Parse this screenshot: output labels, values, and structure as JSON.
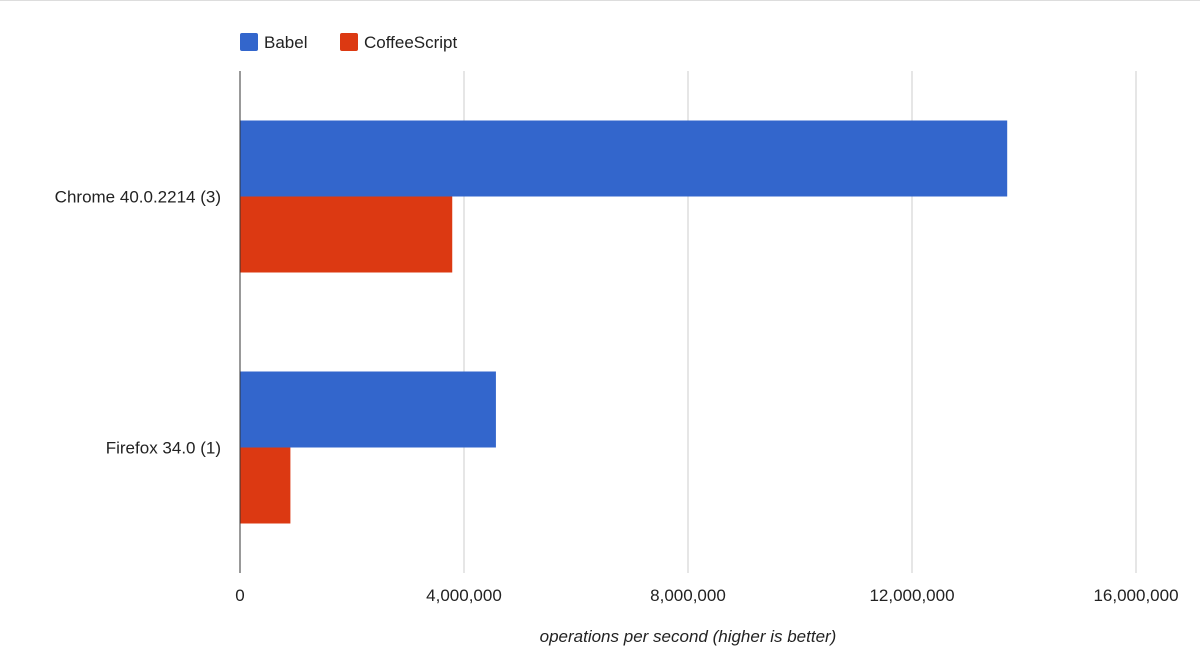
{
  "chart_data": {
    "type": "bar",
    "orientation": "horizontal",
    "title": "",
    "categories": [
      "Chrome 40.0.2214 (3)",
      "Firefox 34.0 (1)"
    ],
    "series": [
      {
        "name": "Babel",
        "color": "#3366cc",
        "values": [
          13700000,
          4570000
        ]
      },
      {
        "name": "CoffeeScript",
        "color": "#dc3912",
        "values": [
          3790000,
          900000
        ]
      }
    ],
    "xlim": [
      0,
      16000000
    ],
    "xticks": [
      0,
      4000000,
      8000000,
      12000000,
      16000000
    ],
    "xtick_labels": [
      "0",
      "4,000,000",
      "8,000,000",
      "12,000,000",
      "16,000,000"
    ],
    "xlabel": "operations per second (higher is better)",
    "ylabel": "",
    "grid": true,
    "legend_position": "top-left"
  }
}
